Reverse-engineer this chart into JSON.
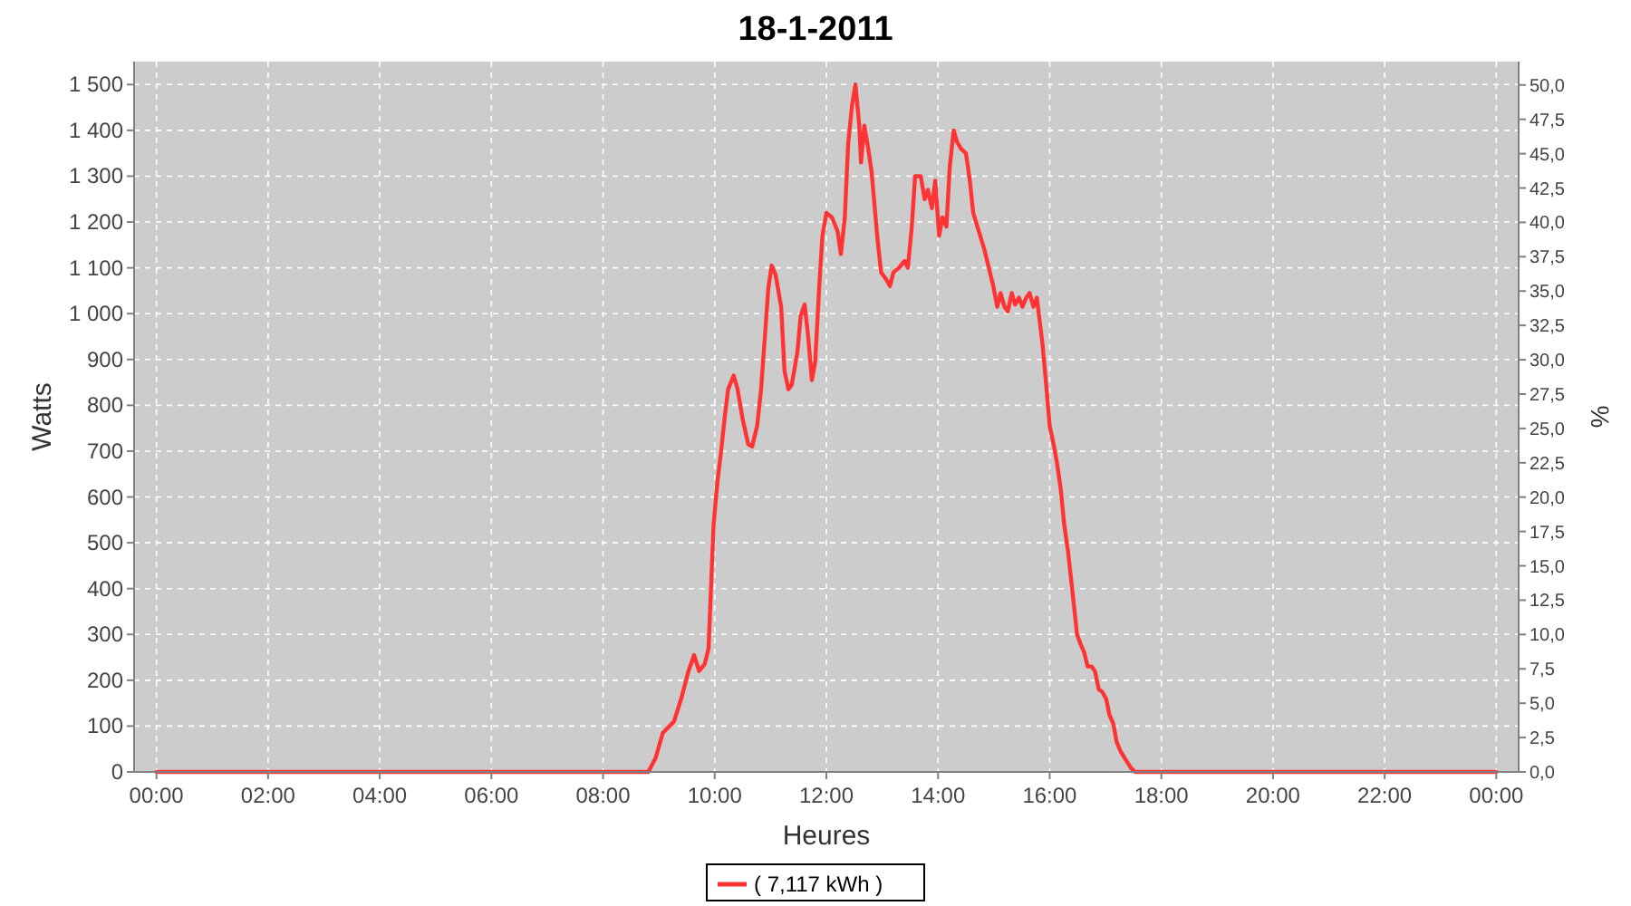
{
  "chart_data": {
    "type": "line",
    "title": "18-1-2011",
    "xlabel": "Heures",
    "ylabel": "Watts",
    "y2label": "%",
    "x": [
      0,
      8.81,
      8.94,
      9.07,
      9.27,
      9.4,
      9.53,
      9.63,
      9.72,
      9.82,
      9.89,
      9.92,
      9.98,
      10.05,
      10.11,
      10.18,
      10.24,
      10.34,
      10.41,
      10.5,
      10.6,
      10.67,
      10.76,
      10.83,
      10.89,
      10.96,
      11.02,
      11.09,
      11.19,
      11.25,
      11.32,
      11.38,
      11.48,
      11.54,
      11.61,
      11.67,
      11.74,
      11.8,
      11.87,
      11.93,
      12,
      12.1,
      12.2,
      12.26,
      12.33,
      12.39,
      12.46,
      12.52,
      12.59,
      12.62,
      12.68,
      12.75,
      12.81,
      12.91,
      12.98,
      13.07,
      13.14,
      13.2,
      13.3,
      13.4,
      13.46,
      13.53,
      13.59,
      13.69,
      13.76,
      13.82,
      13.89,
      13.95,
      14.02,
      14.08,
      14.15,
      14.21,
      14.28,
      14.34,
      14.41,
      14.5,
      14.57,
      14.63,
      14.73,
      14.83,
      14.93,
      14.99,
      15.06,
      15.12,
      15.19,
      15.25,
      15.32,
      15.38,
      15.45,
      15.51,
      15.58,
      15.64,
      15.71,
      15.77,
      15.87,
      15.93,
      16,
      16.07,
      16.13,
      16.2,
      16.26,
      16.33,
      16.42,
      16.49,
      16.55,
      16.62,
      16.68,
      16.75,
      16.81,
      16.88,
      16.94,
      17.01,
      17.07,
      17.14,
      17.2,
      17.27,
      17.37,
      17.46,
      17.53,
      24
    ],
    "series": [
      {
        "name": "( 7,117 kWh )",
        "color": "#ff3333",
        "values": [
          0,
          0,
          30,
          85,
          110,
          160,
          220,
          255,
          220,
          235,
          270,
          360,
          540,
          635,
          695,
          775,
          835,
          865,
          835,
          770,
          715,
          710,
          755,
          835,
          935,
          1055,
          1105,
          1085,
          1015,
          875,
          835,
          845,
          915,
          995,
          1020,
          955,
          855,
          895,
          1055,
          1170,
          1220,
          1210,
          1180,
          1130,
          1210,
          1370,
          1455,
          1500,
          1410,
          1330,
          1410,
          1360,
          1310,
          1170,
          1090,
          1075,
          1060,
          1090,
          1100,
          1115,
          1100,
          1190,
          1300,
          1300,
          1250,
          1270,
          1230,
          1290,
          1170,
          1210,
          1190,
          1320,
          1400,
          1375,
          1360,
          1350,
          1290,
          1220,
          1180,
          1140,
          1090,
          1060,
          1015,
          1045,
          1015,
          1005,
          1045,
          1020,
          1035,
          1015,
          1035,
          1045,
          1015,
          1035,
          935,
          855,
          755,
          715,
          675,
          615,
          540,
          480,
          380,
          300,
          280,
          260,
          230,
          230,
          220,
          180,
          175,
          160,
          125,
          105,
          65,
          45,
          25,
          8,
          0,
          0
        ]
      }
    ],
    "xlim": [
      -0.4,
      24.4
    ],
    "xticks": [
      {
        "value": 0,
        "label": "00:00"
      },
      {
        "value": 2,
        "label": "02:00"
      },
      {
        "value": 4,
        "label": "04:00"
      },
      {
        "value": 6,
        "label": "06:00"
      },
      {
        "value": 8,
        "label": "08:00"
      },
      {
        "value": 10,
        "label": "10:00"
      },
      {
        "value": 12,
        "label": "12:00"
      },
      {
        "value": 14,
        "label": "14:00"
      },
      {
        "value": 16,
        "label": "16:00"
      },
      {
        "value": 18,
        "label": "18:00"
      },
      {
        "value": 20,
        "label": "20:00"
      },
      {
        "value": 22,
        "label": "22:00"
      },
      {
        "value": 24,
        "label": "00:00"
      }
    ],
    "ylim": [
      0,
      1550
    ],
    "yticks": [
      0,
      100,
      200,
      300,
      400,
      500,
      600,
      700,
      800,
      900,
      {
        "value": 1000,
        "label": "1 000"
      },
      {
        "value": 1100,
        "label": "1 100"
      },
      {
        "value": 1200,
        "label": "1 200"
      },
      {
        "value": 1300,
        "label": "1 300"
      },
      {
        "value": 1400,
        "label": "1 400"
      },
      {
        "value": 1500,
        "label": "1 500"
      }
    ],
    "y2lim": [
      0,
      51.7
    ],
    "y2ticks": [
      {
        "value": 0,
        "label": "0,0"
      },
      {
        "value": 2.5,
        "label": "2,5"
      },
      {
        "value": 5,
        "label": "5,0"
      },
      {
        "value": 7.5,
        "label": "7,5"
      },
      {
        "value": 10,
        "label": "10,0"
      },
      {
        "value": 12.5,
        "label": "12,5"
      },
      {
        "value": 15,
        "label": "15,0"
      },
      {
        "value": 17.5,
        "label": "17,5"
      },
      {
        "value": 20,
        "label": "20,0"
      },
      {
        "value": 22.5,
        "label": "22,5"
      },
      {
        "value": 25,
        "label": "25,0"
      },
      {
        "value": 27.5,
        "label": "27,5"
      },
      {
        "value": 30,
        "label": "30,0"
      },
      {
        "value": 32.5,
        "label": "32,5"
      },
      {
        "value": 35,
        "label": "35,0"
      },
      {
        "value": 37.5,
        "label": "37,5"
      },
      {
        "value": 40,
        "label": "40,0"
      },
      {
        "value": 42.5,
        "label": "42,5"
      },
      {
        "value": 45,
        "label": "45,0"
      },
      {
        "value": 47.5,
        "label": "47,5"
      },
      {
        "value": 50,
        "label": "50,0"
      }
    ],
    "grid": true,
    "legend": "bottom",
    "line_style": "solid"
  }
}
